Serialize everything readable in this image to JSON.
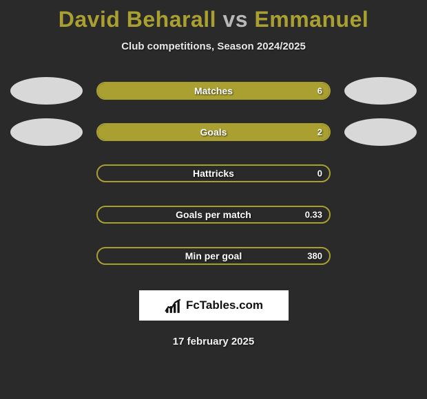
{
  "title": {
    "player1": "David Beharall",
    "vs": "vs",
    "player2": "Emmanuel"
  },
  "subtitle": "Club competitions, Season 2024/2025",
  "avatars": {
    "left_color": "#d8d8d8",
    "right_color": "#d8d8d8"
  },
  "bar_style": {
    "border_color": "#aaa032",
    "fill_color": "#aaa032",
    "empty_bg": "#2a2a2a"
  },
  "stats": [
    {
      "label": "Matches",
      "value": "6",
      "fill_percent": 100,
      "show_avatars": true
    },
    {
      "label": "Goals",
      "value": "2",
      "fill_percent": 100,
      "show_avatars": true
    },
    {
      "label": "Hattricks",
      "value": "0",
      "fill_percent": 0,
      "show_avatars": false
    },
    {
      "label": "Goals per match",
      "value": "0.33",
      "fill_percent": 0,
      "show_avatars": false
    },
    {
      "label": "Min per goal",
      "value": "380",
      "fill_percent": 0,
      "show_avatars": false
    }
  ],
  "logo_text": "FcTables.com",
  "date": "17 february 2025"
}
